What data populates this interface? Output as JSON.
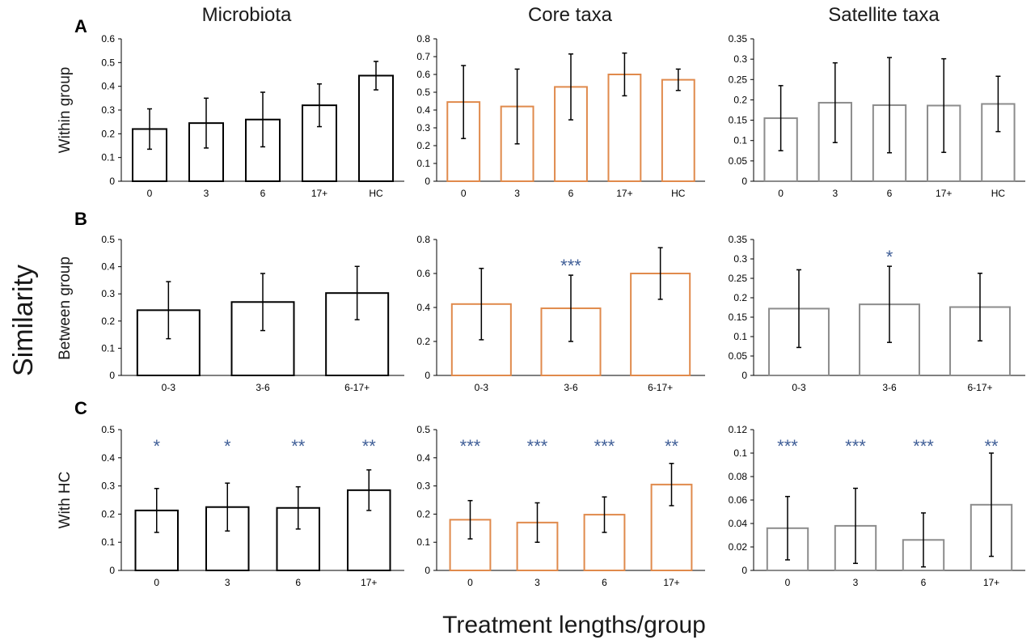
{
  "figure": {
    "column_titles": [
      "Microbiota",
      "Core taxa",
      "Satellite taxa"
    ],
    "panel_letters": [
      "A",
      "B",
      "C"
    ],
    "row_labels": [
      "Within group",
      "Between group",
      "With HC"
    ],
    "y_label": "Similarity",
    "x_label": "Treatment lengths/group"
  },
  "colors": {
    "microbiota": "#000000",
    "core": "#e08a4c",
    "satellite": "#8c8c8c",
    "significance": "#3f5e97"
  },
  "chart_data": [
    {
      "id": "A-microbiota",
      "type": "bar",
      "color_key": "microbiota",
      "categories": [
        "0",
        "3",
        "6",
        "17+",
        "HC"
      ],
      "values": [
        0.22,
        0.245,
        0.26,
        0.32,
        0.445
      ],
      "errors": [
        0.085,
        0.105,
        0.115,
        0.09,
        0.06
      ],
      "significance": [
        "",
        "",
        "",
        "",
        ""
      ],
      "ylim": [
        0,
        0.6
      ],
      "yticks": [
        0,
        0.1,
        0.2,
        0.3,
        0.4,
        0.5,
        0.6
      ],
      "ytick_labels": [
        "0",
        "0.1",
        "0.2",
        "0.3",
        "0.4",
        "0.5",
        "0.6"
      ],
      "ylabel": "Within group",
      "grid": false
    },
    {
      "id": "A-core",
      "type": "bar",
      "color_key": "core",
      "categories": [
        "0",
        "3",
        "6",
        "17+",
        "HC"
      ],
      "values": [
        0.445,
        0.42,
        0.53,
        0.6,
        0.57
      ],
      "errors": [
        0.205,
        0.21,
        0.185,
        0.12,
        0.06
      ],
      "significance": [
        "",
        "",
        "",
        "",
        ""
      ],
      "ylim": [
        0,
        0.8
      ],
      "yticks": [
        0,
        0.1,
        0.2,
        0.3,
        0.4,
        0.5,
        0.6,
        0.7,
        0.8
      ],
      "ytick_labels": [
        "0",
        "0.1",
        "0.2",
        "0.3",
        "0.4",
        "0.5",
        "0.6",
        "0.7",
        "0.8"
      ],
      "ylabel": "",
      "grid": false
    },
    {
      "id": "A-satellite",
      "type": "bar",
      "color_key": "satellite",
      "categories": [
        "0",
        "3",
        "6",
        "17+",
        "HC"
      ],
      "values": [
        0.155,
        0.193,
        0.187,
        0.186,
        0.19
      ],
      "errors": [
        0.08,
        0.098,
        0.117,
        0.115,
        0.068
      ],
      "significance": [
        "",
        "",
        "",
        "",
        ""
      ],
      "ylim": [
        0,
        0.35
      ],
      "yticks": [
        0,
        0.05,
        0.1,
        0.15,
        0.2,
        0.25,
        0.3,
        0.35
      ],
      "ytick_labels": [
        "0",
        "0.05",
        "0.1",
        "0.15",
        "0.2",
        "0.25",
        "0.3",
        "0.35"
      ],
      "ylabel": "",
      "grid": false
    },
    {
      "id": "B-microbiota",
      "type": "bar",
      "color_key": "microbiota",
      "categories": [
        "0-3",
        "3-6",
        "6-17+"
      ],
      "values": [
        0.24,
        0.27,
        0.303
      ],
      "errors": [
        0.105,
        0.105,
        0.098
      ],
      "significance": [
        "",
        "",
        ""
      ],
      "ylim": [
        0,
        0.5
      ],
      "yticks": [
        0,
        0.1,
        0.2,
        0.3,
        0.4,
        0.5
      ],
      "ytick_labels": [
        "0",
        "0.1",
        "0.2",
        "0.3",
        "0.4",
        "0.5"
      ],
      "ylabel": "Between group",
      "grid": false
    },
    {
      "id": "B-core",
      "type": "bar",
      "color_key": "core",
      "categories": [
        "0-3",
        "3-6",
        "6-17+"
      ],
      "values": [
        0.42,
        0.395,
        0.6
      ],
      "errors": [
        0.21,
        0.195,
        0.152
      ],
      "significance": [
        "",
        "***",
        ""
      ],
      "ylim": [
        0,
        0.8
      ],
      "yticks": [
        0,
        0.2,
        0.4,
        0.6,
        0.8
      ],
      "ytick_labels": [
        "0",
        "0.2",
        "0.4",
        "0.6",
        "0.8"
      ],
      "ylabel": "",
      "grid": false
    },
    {
      "id": "B-satellite",
      "type": "bar",
      "color_key": "satellite",
      "categories": [
        "0-3",
        "3-6",
        "6-17+"
      ],
      "values": [
        0.172,
        0.183,
        0.176
      ],
      "errors": [
        0.1,
        0.098,
        0.087
      ],
      "significance": [
        "",
        "*",
        ""
      ],
      "ylim": [
        0,
        0.35
      ],
      "yticks": [
        0,
        0.05,
        0.1,
        0.15,
        0.2,
        0.25,
        0.3,
        0.35
      ],
      "ytick_labels": [
        "0",
        "0.05",
        "0.1",
        "0.15",
        "0.2",
        "0.25",
        "0.3",
        "0.35"
      ],
      "ylabel": "",
      "grid": false
    },
    {
      "id": "C-microbiota",
      "type": "bar",
      "color_key": "microbiota",
      "categories": [
        "0",
        "3",
        "6",
        "17+"
      ],
      "values": [
        0.213,
        0.225,
        0.222,
        0.285
      ],
      "errors": [
        0.078,
        0.085,
        0.075,
        0.072
      ],
      "significance": [
        "*",
        "*",
        "**",
        "**"
      ],
      "ylim": [
        0,
        0.5
      ],
      "yticks": [
        0,
        0.1,
        0.2,
        0.3,
        0.4,
        0.5
      ],
      "ytick_labels": [
        "0",
        "0.1",
        "0.2",
        "0.3",
        "0.4",
        "0.5"
      ],
      "ylabel": "With HC",
      "grid": false
    },
    {
      "id": "C-core",
      "type": "bar",
      "color_key": "core",
      "categories": [
        "0",
        "3",
        "6",
        "17+"
      ],
      "values": [
        0.18,
        0.17,
        0.198,
        0.305
      ],
      "errors": [
        0.068,
        0.07,
        0.063,
        0.075
      ],
      "significance": [
        "***",
        "***",
        "***",
        "**"
      ],
      "ylim": [
        0,
        0.5
      ],
      "yticks": [
        0,
        0.1,
        0.2,
        0.3,
        0.4,
        0.5
      ],
      "ytick_labels": [
        "0",
        "0.1",
        "0.2",
        "0.3",
        "0.4",
        "0.5"
      ],
      "ylabel": "",
      "grid": false
    },
    {
      "id": "C-satellite",
      "type": "bar",
      "color_key": "satellite",
      "categories": [
        "0",
        "3",
        "6",
        "17+"
      ],
      "values": [
        0.036,
        0.038,
        0.026,
        0.056
      ],
      "errors": [
        0.027,
        0.032,
        0.023,
        0.044
      ],
      "significance": [
        "***",
        "***",
        "***",
        "**"
      ],
      "ylim": [
        0,
        0.12
      ],
      "yticks": [
        0,
        0.02,
        0.04,
        0.06,
        0.08,
        0.1,
        0.12
      ],
      "ytick_labels": [
        "0",
        "0.02",
        "0.04",
        "0.06",
        "0.08",
        "0.1",
        "0.12"
      ],
      "ylabel": "",
      "grid": false
    }
  ]
}
